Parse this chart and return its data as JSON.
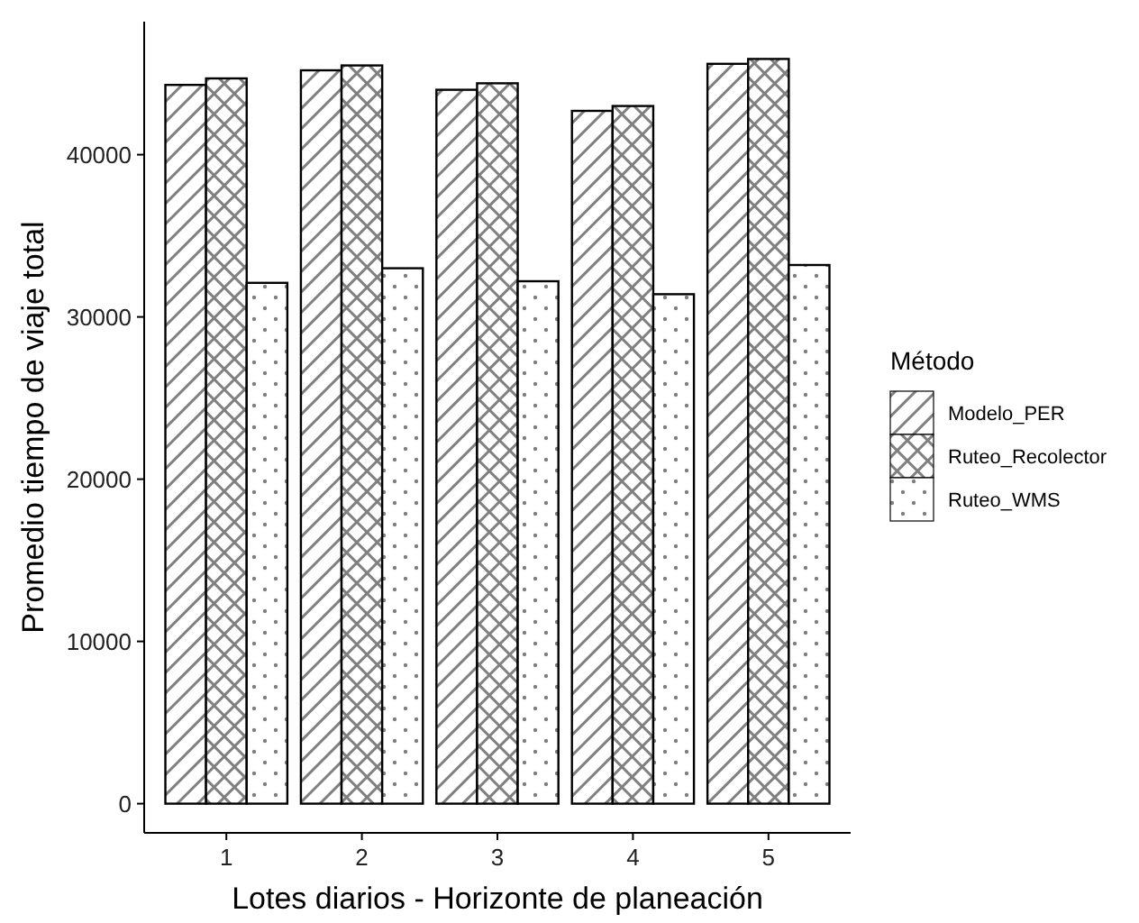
{
  "chart_data": {
    "type": "bar",
    "xlabel": "Lotes diarios - Horizonte de planeación",
    "ylabel": "Promedio tiempo de viaje total",
    "legend_title": "Método",
    "legend": "right",
    "categories": [
      "1",
      "2",
      "3",
      "4",
      "5"
    ],
    "series": [
      {
        "name": "Modelo_PER",
        "color": "#000000",
        "values": [
          44300,
          45200,
          44000,
          42700,
          45600
        ]
      },
      {
        "name": "Ruteo_Recolector",
        "color": "#000000",
        "values": [
          44700,
          45500,
          44400,
          43000,
          45900
        ]
      },
      {
        "name": "Ruteo_WMS",
        "color": "#000000",
        "values": [
          32100,
          33000,
          32200,
          31400,
          33200
        ]
      }
    ],
    "ylim": [
      -1800,
      48200
    ],
    "yticks": [
      0,
      10000,
      20000,
      30000,
      40000
    ],
    "grid": false
  }
}
